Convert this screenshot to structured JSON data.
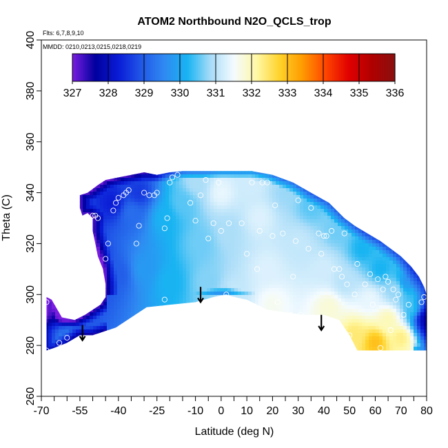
{
  "chart_data": {
    "type": "heatmap",
    "title": "ATOM2 Northbound N2O_QCLS_trop",
    "annotations": [
      "Flts: 6,7,8,9,10",
      "MMDD: 0210,0213,0215,0218,0219"
    ],
    "xlabel": "Latitude (deg N)",
    "ylabel": "Theta (C)",
    "xlim": [
      -70,
      80
    ],
    "ylim": [
      260,
      400
    ],
    "x_ticks": [
      -70,
      -65,
      -60,
      -55,
      -50,
      -45,
      -40,
      -35,
      -30,
      -25,
      -20,
      -15,
      -10,
      -5,
      0,
      5,
      10,
      15,
      20,
      25,
      30,
      35,
      40,
      45,
      50,
      55,
      60,
      65,
      70,
      75,
      80
    ],
    "x_tick_labels": [
      "-70",
      "",
      "",
      "-55",
      "",
      "",
      "-40",
      "",
      "",
      "-25",
      "",
      "",
      "-10",
      "",
      "0",
      "",
      "10",
      "",
      "20",
      "",
      "30",
      "",
      "40",
      "",
      "50",
      "",
      "60",
      "",
      "70",
      "",
      "80"
    ],
    "y_ticks": [
      260,
      280,
      300,
      320,
      340,
      360,
      380,
      400
    ],
    "y_tick_labels": [
      "260",
      "280",
      "300",
      "320",
      "340",
      "360",
      "380",
      "400"
    ],
    "colorbar": {
      "min": 327,
      "max": 336,
      "tick_values": [
        327,
        328,
        329,
        330,
        331,
        332,
        333,
        334,
        335,
        336
      ],
      "tick_labels": [
        "327",
        "328",
        "329",
        "330",
        "331",
        "332",
        "333",
        "334",
        "335",
        "336"
      ],
      "colors": [
        "#7a1de0",
        "#00009e",
        "#0a1cd6",
        "#2158e8",
        "#2f8af2",
        "#19b4f2",
        "#a8dcf8",
        "#f4fbff",
        "#fff8a6",
        "#ffd22a",
        "#ff9a00",
        "#ff4400",
        "#e00000",
        "#b00000",
        "#8a1010"
      ]
    },
    "field_outline": {
      "latitude": [
        -68,
        -66,
        -62,
        -57,
        -53,
        -50,
        -47,
        -45,
        -45,
        -46,
        -48,
        -49,
        -50,
        -50,
        -52,
        -54,
        -55,
        -55,
        -52,
        -48,
        -45,
        -40,
        -35,
        -30,
        -25,
        -20,
        -15,
        -10,
        -5,
        0,
        5,
        10,
        12,
        20,
        28,
        35,
        42,
        48,
        52,
        57,
        62,
        66,
        70,
        74,
        77,
        79,
        80,
        80,
        74,
        66,
        58,
        53,
        50,
        46,
        40,
        32,
        25,
        18,
        10,
        5,
        2,
        -3,
        -10,
        -20,
        -29,
        -41,
        -44,
        -50,
        -55,
        -60,
        -65,
        -68
      ],
      "theta": [
        299,
        298,
        291,
        290,
        292,
        294,
        296,
        299,
        304,
        310,
        315,
        320,
        325,
        330,
        332,
        331,
        334,
        339,
        340,
        343,
        345,
        346,
        347,
        348,
        347,
        348,
        348.5,
        348.5,
        348.5,
        348.5,
        348.5,
        348.5,
        348.5,
        347,
        344,
        340,
        336,
        330,
        327,
        324,
        321,
        318,
        315,
        311,
        307,
        303,
        300,
        278,
        278,
        278,
        278,
        278,
        284,
        290,
        292,
        292,
        293,
        294,
        298,
        299,
        300,
        299,
        297,
        296,
        295,
        287,
        286,
        284,
        284,
        281,
        279,
        278
      ]
    },
    "value_field": [
      {
        "lat": -62,
        "theta": 292,
        "value": 328.0
      },
      {
        "lat": -50,
        "theta": 310,
        "value": 328.0
      },
      {
        "lat": -42,
        "theta": 336,
        "value": 328.3
      },
      {
        "lat": -35,
        "theta": 332,
        "value": 329.2
      },
      {
        "lat": -32,
        "theta": 340,
        "value": 328.6
      },
      {
        "lat": -40,
        "theta": 308,
        "value": 329.0
      },
      {
        "lat": -30,
        "theta": 310,
        "value": 329.8
      },
      {
        "lat": -20,
        "theta": 305,
        "value": 330.2
      },
      {
        "lat": -22,
        "theta": 330,
        "value": 330.2
      },
      {
        "lat": -15,
        "theta": 336,
        "value": 330.5
      },
      {
        "lat": -10,
        "theta": 344,
        "value": 330.9
      },
      {
        "lat": -8,
        "theta": 320,
        "value": 330.6
      },
      {
        "lat": -5,
        "theta": 305,
        "value": 330.7
      },
      {
        "lat": 0,
        "theta": 340,
        "value": 331.4
      },
      {
        "lat": 3,
        "theta": 325,
        "value": 330.9
      },
      {
        "lat": 5,
        "theta": 300,
        "value": 331.1
      },
      {
        "lat": 12,
        "theta": 344,
        "value": 331.2
      },
      {
        "lat": 15,
        "theta": 330,
        "value": 331.3
      },
      {
        "lat": 18,
        "theta": 310,
        "value": 331.3
      },
      {
        "lat": 20,
        "theta": 296,
        "value": 331.6
      },
      {
        "lat": 25,
        "theta": 340,
        "value": 330.8
      },
      {
        "lat": 30,
        "theta": 320,
        "value": 331.1
      },
      {
        "lat": 35,
        "theta": 335,
        "value": 330.5
      },
      {
        "lat": 40,
        "theta": 310,
        "value": 331.2
      },
      {
        "lat": 42,
        "theta": 295,
        "value": 331.8
      },
      {
        "lat": 45,
        "theta": 325,
        "value": 330.6
      },
      {
        "lat": 48,
        "theta": 305,
        "value": 331.0
      },
      {
        "lat": 52,
        "theta": 284,
        "value": 332.4
      },
      {
        "lat": 55,
        "theta": 318,
        "value": 330.2
      },
      {
        "lat": 58,
        "theta": 298,
        "value": 331.4
      },
      {
        "lat": 60,
        "theta": 281,
        "value": 333.0
      },
      {
        "lat": 62,
        "theta": 310,
        "value": 330.2
      },
      {
        "lat": 65,
        "theta": 290,
        "value": 332.0
      },
      {
        "lat": 68,
        "theta": 302,
        "value": 330.8
      },
      {
        "lat": 70,
        "theta": 283,
        "value": 332.3
      },
      {
        "lat": 72,
        "theta": 305,
        "value": 329.8
      },
      {
        "lat": 75,
        "theta": 295,
        "value": 330.4
      },
      {
        "lat": 78,
        "theta": 290,
        "value": 329.0
      },
      {
        "lat": -60,
        "theta": 283,
        "value": 329.3
      },
      {
        "lat": -67,
        "theta": 283,
        "value": 329.6
      }
    ],
    "observations": [
      [
        -68,
        297
      ],
      [
        -68,
        278
      ],
      [
        -63,
        281
      ],
      [
        -60,
        283
      ],
      [
        -52,
        320
      ],
      [
        -50,
        331
      ],
      [
        -49,
        331
      ],
      [
        -48,
        330
      ],
      [
        -45,
        314
      ],
      [
        -44,
        320
      ],
      [
        -42,
        333
      ],
      [
        -41,
        336
      ],
      [
        -40,
        338
      ],
      [
        -38,
        339
      ],
      [
        -37,
        340
      ],
      [
        -36,
        341
      ],
      [
        -33,
        320
      ],
      [
        -32,
        327
      ],
      [
        -30,
        340
      ],
      [
        -28,
        339
      ],
      [
        -26,
        339
      ],
      [
        -25,
        340
      ],
      [
        -22,
        326
      ],
      [
        -22,
        298
      ],
      [
        -21,
        330
      ],
      [
        -20,
        344
      ],
      [
        -19,
        346
      ],
      [
        -17,
        347
      ],
      [
        -12,
        336
      ],
      [
        -10,
        329
      ],
      [
        -8,
        339
      ],
      [
        -6,
        345
      ],
      [
        -5,
        322
      ],
      [
        -3,
        328
      ],
      [
        -1,
        344
      ],
      [
        0,
        325
      ],
      [
        2,
        300
      ],
      [
        3,
        328
      ],
      [
        5,
        298
      ],
      [
        8,
        328
      ],
      [
        10,
        316
      ],
      [
        12,
        344
      ],
      [
        14,
        310
      ],
      [
        15,
        325
      ],
      [
        16,
        344
      ],
      [
        18,
        344
      ],
      [
        20,
        323
      ],
      [
        21,
        335
      ],
      [
        22,
        297
      ],
      [
        24,
        324
      ],
      [
        26,
        347
      ],
      [
        27,
        292
      ],
      [
        28,
        307
      ],
      [
        29,
        321
      ],
      [
        30,
        337
      ],
      [
        31,
        292
      ],
      [
        34,
        318
      ],
      [
        35,
        334
      ],
      [
        36,
        290
      ],
      [
        38,
        324
      ],
      [
        39,
        316
      ],
      [
        40,
        323
      ],
      [
        41,
        323
      ],
      [
        42,
        290
      ],
      [
        43,
        325
      ],
      [
        44,
        310
      ],
      [
        46,
        310
      ],
      [
        47,
        307
      ],
      [
        48,
        324
      ],
      [
        49,
        304
      ],
      [
        50,
        284
      ],
      [
        52,
        300
      ],
      [
        53,
        312
      ],
      [
        56,
        304
      ],
      [
        58,
        308
      ],
      [
        59,
        296
      ],
      [
        61,
        306
      ],
      [
        62,
        279
      ],
      [
        63,
        302
      ],
      [
        64,
        307
      ],
      [
        65,
        305
      ],
      [
        66,
        286
      ],
      [
        67,
        302
      ],
      [
        68,
        298
      ],
      [
        69,
        300
      ],
      [
        71,
        292
      ],
      [
        73,
        296
      ],
      [
        78,
        297
      ],
      [
        79,
        299
      ]
    ],
    "arrows": [
      {
        "lat": -54,
        "theta_start": 288,
        "theta_end": 282
      },
      {
        "lat": -8,
        "theta_start": 303,
        "theta_end": 297
      },
      {
        "lat": 39,
        "theta_start": 292,
        "theta_end": 286
      }
    ]
  }
}
